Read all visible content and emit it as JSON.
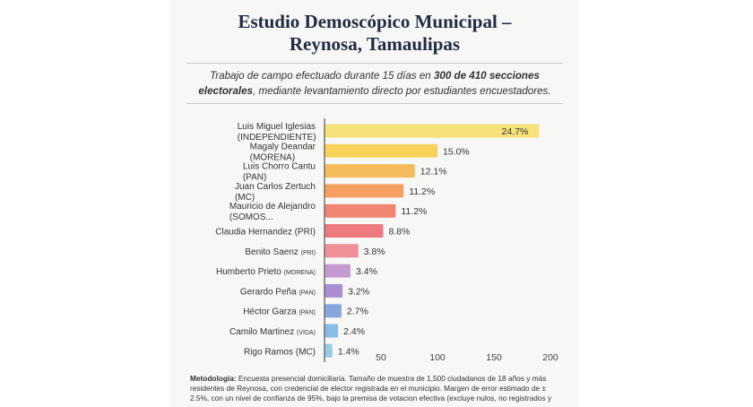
{
  "header": {
    "title_line1": "Estudio Demoscópico Municipal –",
    "title_line2": "Reynosa, Tamaulipas"
  },
  "subtitle": {
    "part1": "Trabajo de campo efectuado durante 15 días en ",
    "bold1": "300 de 410 secciones electorales",
    "part2": ", mediante levantamiento directo por estudiantes encuestadores."
  },
  "methodology": {
    "label": "Metodología:",
    "text": " Encuesta presencial domiciliaria. Tamaño de muestra de 1,500 ciudadanos de 18 años y más residentes de Reynosa, con credencial de elector registrada en el municipio. Margen de error estimado de ± 2.5%, con un nivel de confianza de 95%, bajo la premisa de votacion efectiva (excluye nulos, no registrados y"
  },
  "chart_data": {
    "type": "bar",
    "orientation": "horizontal",
    "xlim": [
      0,
      200
    ],
    "x_ticks": [
      50,
      100,
      150,
      200
    ],
    "x_tick_labels": [
      "50",
      "100",
      "150",
      "200"
    ],
    "categories": [
      {
        "name": "Luis Miguel Iglesias",
        "party": "(INDEPENDIENTE)",
        "party_small": false,
        "two_lines": true
      },
      {
        "name": "Magaly Deandar",
        "party": "(MORENA)",
        "party_small": false,
        "two_lines": true
      },
      {
        "name": "Luis Chorro Cantu",
        "party": "(PAN)",
        "party_small": false,
        "two_lines": true
      },
      {
        "name": "Juan Carlos Zertuch",
        "party": "(MC)",
        "party_small": false,
        "two_lines": true
      },
      {
        "name": "Mauricio de Alejandro",
        "party": "(SOMOS...",
        "party_small": false,
        "two_lines": true
      },
      {
        "name": "Claudia Hernandez",
        "party": "(PRI)",
        "party_small": false,
        "two_lines": false
      },
      {
        "name": "Benito Saenz",
        "party": "(PRI)",
        "party_small": true,
        "two_lines": false
      },
      {
        "name": "Humberto Prieto",
        "party": "(MORENA)",
        "party_small": true,
        "two_lines": false
      },
      {
        "name": "Gerardo Peña",
        "party": "(PAN)",
        "party_small": true,
        "two_lines": false
      },
      {
        "name": "Héctor Garza",
        "party": "(PAN)",
        "party_small": true,
        "two_lines": false
      },
      {
        "name": "Camilo Martinez",
        "party": "(VIDA)",
        "party_small": true,
        "two_lines": false
      },
      {
        "name": "Rigo Ramos",
        "party": "(MC)",
        "party_small": false,
        "two_lines": false
      }
    ],
    "series": [
      {
        "values": [
          190,
          100,
          80,
          70,
          63,
          52,
          30,
          23,
          16,
          15,
          12,
          7
        ],
        "data_labels": [
          "24.7%",
          "15.0%",
          "12.1%",
          "11.2%",
          "11.2%",
          "8.8%",
          "3.8%",
          "3.4%",
          "3.2%",
          "2.7%",
          "2.4%",
          "1.4%"
        ],
        "colors": [
          "#f7e27a",
          "#f8d35c",
          "#f6bc5c",
          "#f5a062",
          "#f08573",
          "#ec7a80",
          "#ef8f98",
          "#c39bd0",
          "#a98fd0",
          "#86a6dc",
          "#86bde6",
          "#9ccbe8"
        ]
      }
    ],
    "axis_color": "#555555"
  }
}
